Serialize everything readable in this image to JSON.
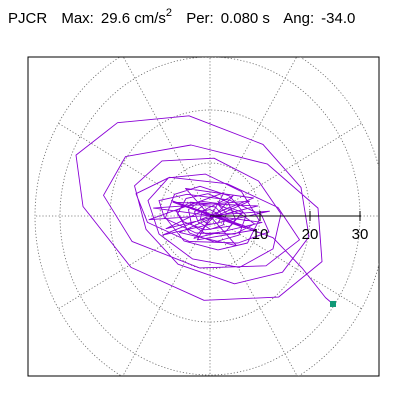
{
  "header": {
    "station": "PJCR",
    "max_label": "Max:",
    "max_value": "29.6",
    "max_unit": "cm/s",
    "max_unit_exp": "2",
    "per_label": "Per:",
    "per_value": "0.080 s",
    "ang_label": "Ang:",
    "ang_value": "-34.0"
  },
  "chart_data": {
    "type": "polar-orbit",
    "title": "PJCR  Max: 29.6 cm/s2  Per: 0.080 s  Ang: -34.0",
    "radial_ticks": [
      10,
      20,
      30
    ],
    "radial_tick_labels": [
      "10",
      "20",
      "30"
    ],
    "rlim": [
      0,
      30
    ],
    "grid": true,
    "grid_angles_deg": [
      0,
      30,
      60,
      90,
      120,
      150,
      180,
      210,
      240,
      270,
      300,
      330
    ],
    "max_amplitude": 29.6,
    "angle_deg": -34.0,
    "peak_point": {
      "x": 24.6,
      "y": -16.6
    },
    "trace_color": "#8a00d6",
    "peak_marker_color": "#119977",
    "trace": [
      [
        0.6,
        0.3
      ],
      [
        3.8,
        1.6
      ],
      [
        6.5,
        0.7
      ],
      [
        4.1,
        -1.9
      ],
      [
        -1.0,
        -2.6
      ],
      [
        -5.3,
        -1.1
      ],
      [
        -6.8,
        1.0
      ],
      [
        -3.9,
        2.6
      ],
      [
        1.5,
        2.2
      ],
      [
        6.2,
        0.3
      ],
      [
        8.9,
        -1.5
      ],
      [
        5.0,
        -3.4
      ],
      [
        -2.8,
        -3.2
      ],
      [
        -9.1,
        -0.4
      ],
      [
        -10.2,
        2.9
      ],
      [
        -4.6,
        4.1
      ],
      [
        3.9,
        3.0
      ],
      [
        10.3,
        0.2
      ],
      [
        11.8,
        -3.0
      ],
      [
        5.6,
        -5.1
      ],
      [
        -4.2,
        -4.8
      ],
      [
        -12.5,
        -1.2
      ],
      [
        -14.8,
        4.2
      ],
      [
        -8.1,
        7.3
      ],
      [
        3.4,
        6.1
      ],
      [
        13.6,
        1.6
      ],
      [
        17.9,
        -4.5
      ],
      [
        11.2,
        -9.4
      ],
      [
        -2.1,
        -9.8
      ],
      [
        -15.6,
        -4.8
      ],
      [
        -21.3,
        3.9
      ],
      [
        -16.9,
        11.2
      ],
      [
        -3.8,
        13.4
      ],
      [
        11.5,
        9.8
      ],
      [
        21.6,
        1.5
      ],
      [
        22.4,
        -8.6
      ],
      [
        13.7,
        -15.3
      ],
      [
        -1.2,
        -15.9
      ],
      [
        -15.8,
        -9.7
      ],
      [
        -25.4,
        1.8
      ],
      [
        -26.8,
        11.5
      ],
      [
        -18.5,
        17.6
      ],
      [
        -4.2,
        18.9
      ],
      [
        10.6,
        13.5
      ],
      [
        18.2,
        5.4
      ],
      [
        19.8,
        -3.9
      ],
      [
        14.5,
        -10.6
      ],
      [
        4.9,
        -12.8
      ],
      [
        -6.4,
        -9.1
      ],
      [
        -12.8,
        -2.5
      ],
      [
        -15.1,
        5.7
      ],
      [
        -9.6,
        10.4
      ],
      [
        0.8,
        10.9
      ],
      [
        9.7,
        6.6
      ],
      [
        14.2,
        0.4
      ],
      [
        12.6,
        -6.2
      ],
      [
        5.9,
        -9.7
      ],
      [
        -3.5,
        -8.1
      ],
      [
        -10.2,
        -3.4
      ],
      [
        -12.4,
        2.9
      ],
      [
        -8.3,
        7.2
      ],
      [
        -0.9,
        7.9
      ],
      [
        6.3,
        4.6
      ],
      [
        9.8,
        -0.8
      ],
      [
        7.5,
        -5.1
      ],
      [
        1.6,
        -6.4
      ],
      [
        -5.2,
        -4.7
      ],
      [
        -8.9,
        -0.3
      ],
      [
        -7.1,
        4.1
      ],
      [
        -2.0,
        5.6
      ],
      [
        3.9,
        3.8
      ],
      [
        7.2,
        0.1
      ],
      [
        5.8,
        -3.6
      ],
      [
        0.9,
        -4.9
      ],
      [
        -4.1,
        -3.2
      ],
      [
        -6.5,
        0.4
      ],
      [
        -4.8,
        3.3
      ],
      [
        -0.4,
        4.2
      ],
      [
        3.6,
        2.6
      ],
      [
        5.1,
        -0.6
      ],
      [
        3.2,
        -2.9
      ],
      [
        -0.8,
        -3.4
      ],
      [
        -3.7,
        -1.6
      ],
      [
        -4.3,
        1.2
      ],
      [
        -1.9,
        2.8
      ],
      [
        1.4,
        2.4
      ],
      [
        3.3,
        0.5
      ],
      [
        2.6,
        -1.7
      ],
      [
        0.1,
        -2.5
      ],
      [
        -2.4,
        -1.1
      ],
      [
        -3.1,
        0.8
      ],
      [
        -1.3,
        2.0
      ],
      [
        1.1,
        1.7
      ],
      [
        2.4,
        0.2
      ],
      [
        1.7,
        -1.3
      ],
      [
        -0.4,
        -1.6
      ],
      [
        -1.9,
        -0.5
      ],
      [
        -1.6,
        0.9
      ],
      [
        0.0,
        1.2
      ],
      [
        1.2,
        0.6
      ],
      [
        6.8,
        -2.2
      ],
      [
        -7.4,
        2.6
      ],
      [
        9.6,
        1.9
      ],
      [
        -8.8,
        -2.4
      ],
      [
        4.6,
        3.8
      ],
      [
        -3.2,
        -4.2
      ],
      [
        10.4,
        -1.2
      ],
      [
        -11.3,
        1.5
      ],
      [
        7.9,
        2.8
      ],
      [
        -6.1,
        -3.1
      ],
      [
        5.3,
        -5.6
      ],
      [
        -4.9,
        5.2
      ],
      [
        8.7,
        3.4
      ],
      [
        -9.5,
        -3.6
      ],
      [
        11.9,
        0.9
      ],
      [
        -12.2,
        -0.7
      ],
      [
        2.8,
        4.4
      ],
      [
        -2.5,
        -4.5
      ],
      [
        9.1,
        -2.6
      ],
      [
        -7.7,
        2.9
      ],
      [
        12.6,
        -4.1
      ],
      [
        18.4,
        -9.8
      ],
      [
        23.1,
        -15.4
      ],
      [
        24.6,
        -16.6
      ]
    ]
  }
}
